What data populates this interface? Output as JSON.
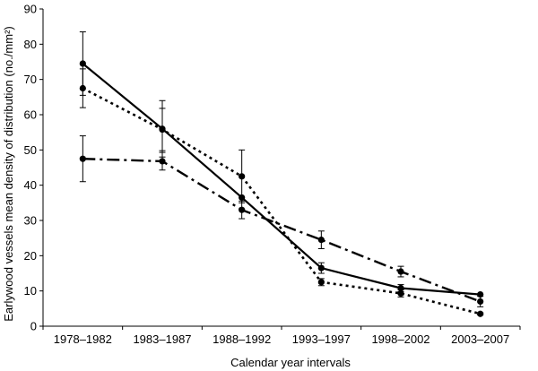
{
  "chart_data": {
    "type": "line",
    "title": "",
    "xlabel": "Calendar year intervals",
    "ylabel": "Earlywood vessels mean density of distribution (no./mm²)",
    "ylim": [
      0,
      90
    ],
    "yticks": [
      0,
      10,
      20,
      30,
      40,
      50,
      60,
      70,
      80,
      90
    ],
    "categories": [
      "1978–1982",
      "1983–1987",
      "1988–1992",
      "1993–1997",
      "1998–2002",
      "2003–2007"
    ],
    "grid": false,
    "legend": "none",
    "series": [
      {
        "style": "solid",
        "values": [
          74.5,
          56,
          36.5,
          16.5,
          10.8,
          9
        ],
        "errors": [
          9,
          8,
          0,
          1.5,
          1,
          0
        ]
      },
      {
        "style": "dotted",
        "values": [
          67.5,
          55.8,
          42.5,
          12.5,
          9.3,
          3.5
        ],
        "errors": [
          5.5,
          6,
          7.5,
          1,
          1,
          0.3
        ]
      },
      {
        "style": "dash-dot",
        "values": [
          47.5,
          46.8,
          33,
          24.5,
          15.5,
          7
        ],
        "errors": [
          6.5,
          2.5,
          2.5,
          2.5,
          1.5,
          1.5
        ]
      }
    ]
  }
}
